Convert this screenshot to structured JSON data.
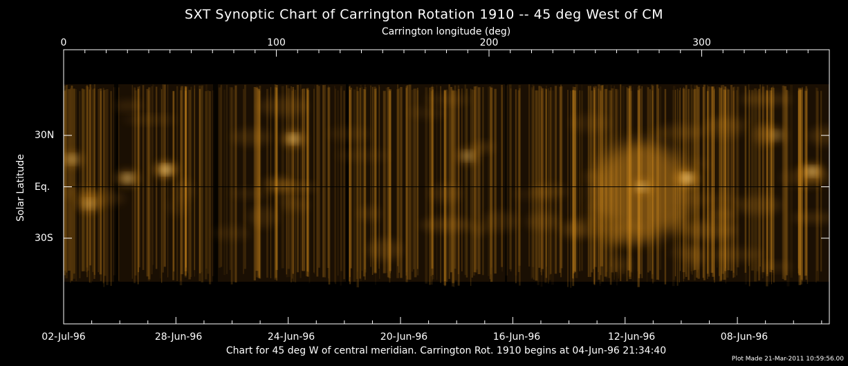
{
  "chart_data": {
    "type": "heatmap",
    "title": "SXT Synoptic Chart of Carrington Rotation 1910 -- 45 deg West of CM",
    "top_axis_label": "Carrington longitude (deg)",
    "y_axis_label": "Solar Latitude",
    "top_ticks": [
      {
        "value": 0,
        "label": "0"
      },
      {
        "value": 100,
        "label": "100"
      },
      {
        "value": 200,
        "label": "200"
      },
      {
        "value": 300,
        "label": "300"
      }
    ],
    "top_range": [
      0,
      360
    ],
    "y_ticks": [
      {
        "value": 30,
        "label": "30N"
      },
      {
        "value": 0,
        "label": "Eq."
      },
      {
        "value": -30,
        "label": "30S"
      }
    ],
    "y_range": [
      -80,
      80
    ],
    "bottom_ticks": [
      {
        "longitude": 0,
        "label": "02-Jul-96"
      },
      {
        "longitude": 54,
        "label": "28-Jun-96"
      },
      {
        "longitude": 107,
        "label": "24-Jun-96"
      },
      {
        "longitude": 160,
        "label": "20-Jun-96"
      },
      {
        "longitude": 213,
        "label": "16-Jun-96"
      },
      {
        "longitude": 267,
        "label": "12-Jun-96"
      },
      {
        "longitude": 320,
        "label": "08-Jun-96"
      }
    ],
    "bright_regions": [
      {
        "longitude": 48,
        "latitude": 10,
        "intensity": 1.0
      },
      {
        "longitude": 30,
        "latitude": 5,
        "intensity": 0.75
      },
      {
        "longitude": 108,
        "latitude": 28,
        "intensity": 0.8
      },
      {
        "longitude": 4,
        "latitude": 16,
        "intensity": 0.6
      },
      {
        "longitude": 12,
        "latitude": -10,
        "intensity": 0.5
      },
      {
        "longitude": 190,
        "latitude": 18,
        "intensity": 0.55
      },
      {
        "longitude": 272,
        "latitude": 0,
        "intensity": 0.6
      },
      {
        "longitude": 293,
        "latitude": 5,
        "intensity": 1.0
      },
      {
        "longitude": 352,
        "latitude": 9,
        "intensity": 0.8
      },
      {
        "longitude": 335,
        "latitude": 30,
        "intensity": 0.35
      }
    ],
    "footnote": "Chart for 45 deg W of central meridian.  Carrington Rot. 1910 begins at 04-Jun-96 21:34:40",
    "plot_made": "Plot Made 21-Mar-2011 10:59:56.00",
    "colors": {
      "background": "#000000",
      "emission": "#e89a20",
      "axes": "#ffffff"
    }
  }
}
